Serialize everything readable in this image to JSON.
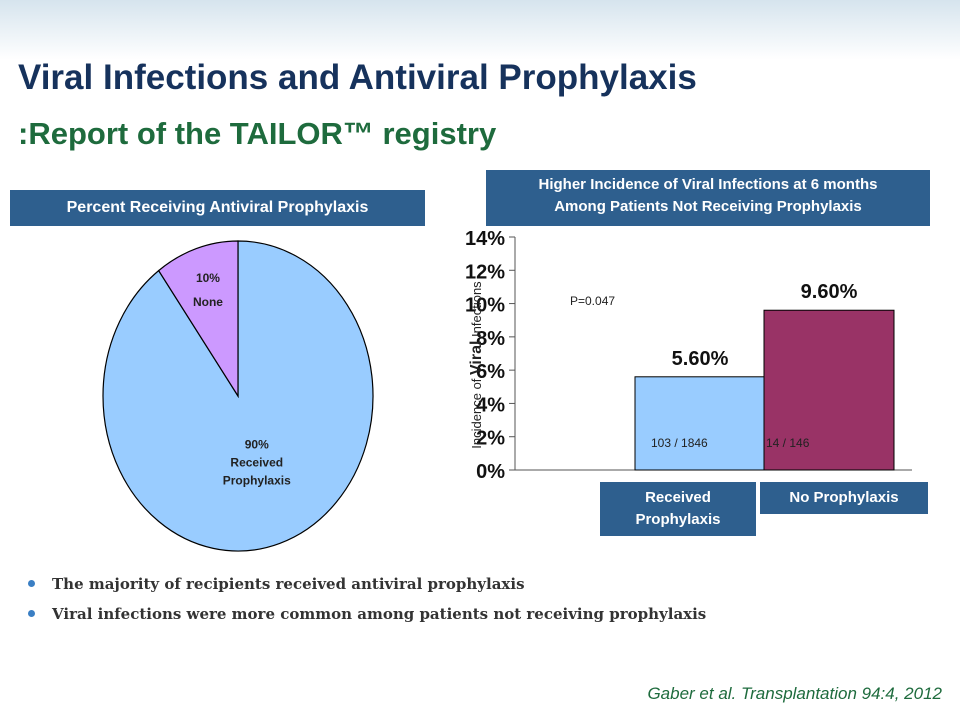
{
  "slide": {
    "title": "Viral Infections and Antiviral Prophylaxis",
    "subtitle": ":Report of the TAILOR™ registry",
    "citation": "Gaber et al. Transplantation 94:4, 2012",
    "bullets": [
      "The majority of recipients received antiviral prophylaxis",
      "Viral infections were more common among patients not receiving prophylaxis"
    ],
    "bullet_color": "#3a7fc4"
  },
  "chart_data": [
    {
      "type": "pie",
      "title": "Percent Receiving Antiviral Prophylaxis",
      "slices": [
        {
          "value": 90,
          "label_pct": "90%",
          "label_line1": "Received",
          "label_line2": "Prophylaxis",
          "color": "#99ccff"
        },
        {
          "value": 10,
          "label_pct": "10%",
          "label_line1": "None",
          "label_line2": "",
          "color": "#cc99ff"
        }
      ]
    },
    {
      "type": "bar",
      "title_line1": "Higher Incidence of Viral Infections at 6 months",
      "title_line2": "Among Patients Not Receiving Prophylaxis",
      "ylabel_part1": "Incidence of ",
      "ylabel_part2": "Viral",
      "ylabel_part3": " Infections",
      "ylim": [
        0,
        14
      ],
      "yticks": [
        "0%",
        "2%",
        "4%",
        "6%",
        "8%",
        "10%",
        "12%",
        "14%"
      ],
      "pvalue": "P=0.047",
      "categories": [
        "Received Prophylaxis",
        "No Prophylaxis"
      ],
      "values": [
        5.6,
        9.6
      ],
      "value_labels": [
        "5.60%",
        "9.60%"
      ],
      "counts": [
        "103 / 1846",
        "14 / 146"
      ],
      "colors": [
        "#99ccff",
        "#993366"
      ]
    }
  ]
}
